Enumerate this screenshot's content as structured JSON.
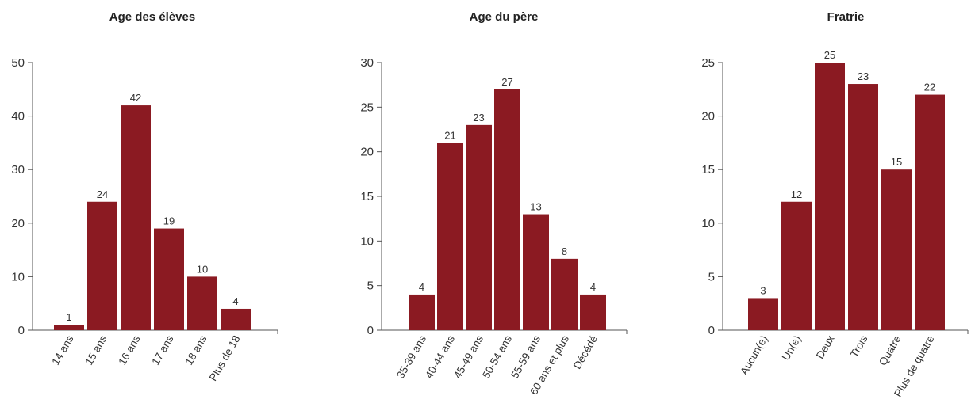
{
  "colors": {
    "bar": "#8b1a22",
    "axis": "#555555",
    "text": "#333333"
  },
  "chart_data": [
    {
      "type": "bar",
      "title": "Age des élèves",
      "categories": [
        "14 ans",
        "15 ans",
        "16 ans",
        "17 ans",
        "18 ans",
        "Plus de 18"
      ],
      "values": [
        1,
        24,
        42,
        19,
        10,
        4
      ],
      "ylim": [
        0,
        50
      ],
      "yticks": [
        0,
        10,
        20,
        30,
        40,
        50
      ],
      "grid": false
    },
    {
      "type": "bar",
      "title": "Age du père",
      "categories": [
        "35-39 ans",
        "40-44 ans",
        "45-49 ans",
        "50-54 ans",
        "55-59 ans",
        "60 ans et plus",
        "Décédé"
      ],
      "values": [
        4,
        21,
        23,
        27,
        13,
        8,
        4
      ],
      "ylim": [
        0,
        30
      ],
      "yticks": [
        0,
        5,
        10,
        15,
        20,
        25,
        30
      ],
      "grid": false
    },
    {
      "type": "bar",
      "title": "Fratrie",
      "categories": [
        "Aucun(e)",
        "Un(e)",
        "Deux",
        "Trois",
        "Quatre",
        "Plus de quatre"
      ],
      "values": [
        3,
        12,
        25,
        23,
        15,
        22
      ],
      "ylim": [
        0,
        25
      ],
      "yticks": [
        0,
        5,
        10,
        15,
        20,
        25
      ],
      "grid": false
    }
  ]
}
